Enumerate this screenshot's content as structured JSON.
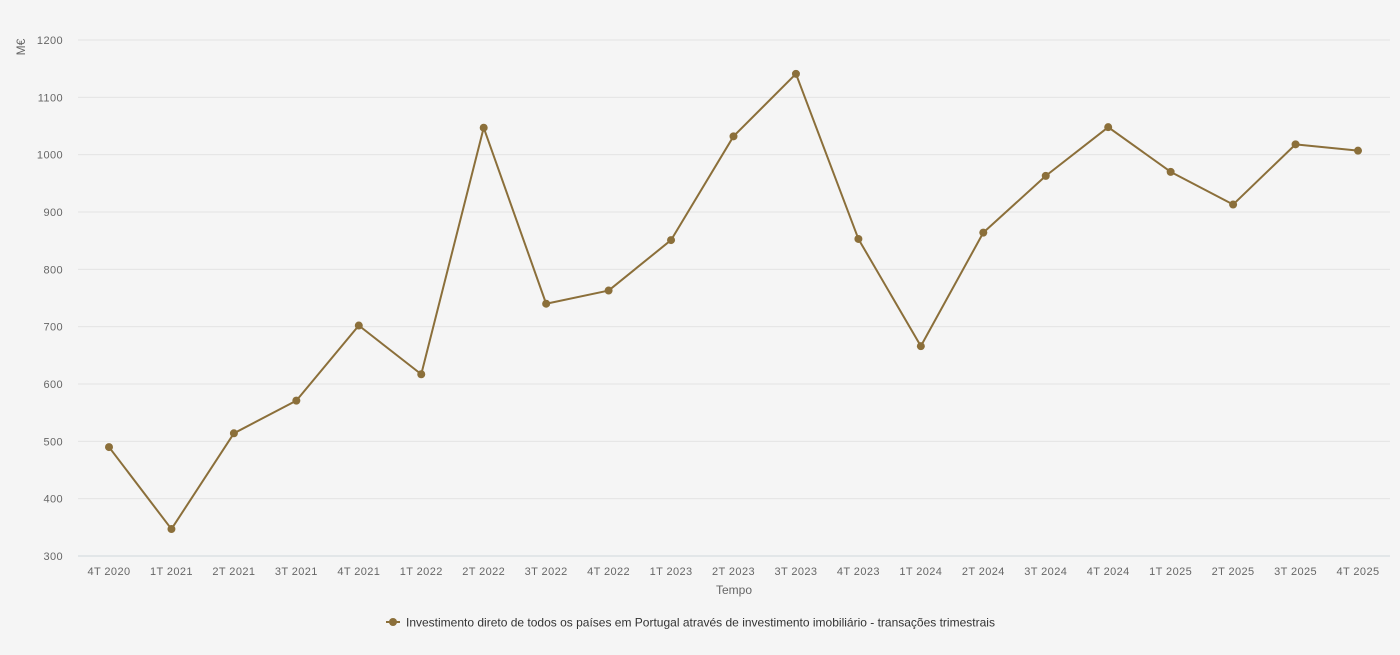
{
  "chart_data": {
    "type": "line",
    "title": "",
    "xlabel": "Tempo",
    "ylabel": "M€",
    "ylim": [
      300,
      1200
    ],
    "yticks": [
      300,
      400,
      500,
      600,
      700,
      800,
      900,
      1000,
      1100,
      1200
    ],
    "grid": true,
    "legend_position": "bottom-center",
    "categories": [
      "4T 2020",
      "1T 2021",
      "2T 2021",
      "3T 2021",
      "4T 2021",
      "1T 2022",
      "2T 2022",
      "3T 2022",
      "4T 2022",
      "1T 2023",
      "2T 2023",
      "3T 2023",
      "4T 2023",
      "1T 2024",
      "2T 2024",
      "3T 2024",
      "4T 2024",
      "1T 2025",
      "2T 2025",
      "3T 2025",
      "4T 2025"
    ],
    "series": [
      {
        "name": "Investimento direto de todos os países em Portugal através de investimento imobiliário - transações trimestrais",
        "color": "#8b6f3a",
        "values": [
          490,
          347,
          514,
          571,
          702,
          617,
          1047,
          740,
          763,
          851,
          1032,
          1141,
          853,
          666,
          864,
          963,
          1048,
          970,
          913,
          1018,
          1007
        ]
      }
    ]
  }
}
